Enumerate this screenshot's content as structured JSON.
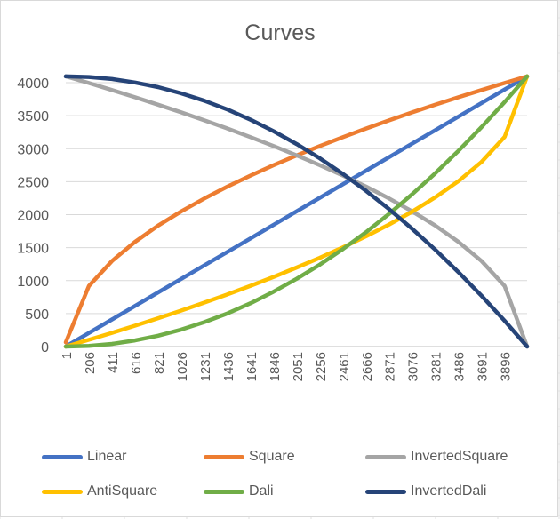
{
  "chart_data": {
    "type": "line",
    "title": "Curves",
    "xlabel": "",
    "ylabel": "",
    "ylim": [
      0,
      4000
    ],
    "y_ticks": [
      0,
      500,
      1000,
      1500,
      2000,
      2500,
      3000,
      3500,
      4000
    ],
    "x_range": [
      1,
      4096
    ],
    "x_tick_labels": [
      "1",
      "206",
      "411",
      "616",
      "821",
      "1026",
      "1231",
      "1436",
      "1641",
      "1846",
      "2051",
      "2256",
      "2461",
      "2666",
      "2871",
      "3076",
      "3281",
      "3486",
      "3691",
      "3896"
    ],
    "grid": "horizontal",
    "legend_position": "bottom",
    "x": [
      1,
      206,
      411,
      616,
      821,
      1026,
      1231,
      1436,
      1641,
      1846,
      2051,
      2256,
      2461,
      2666,
      2871,
      3076,
      3281,
      3486,
      3691,
      3896,
      4096
    ],
    "series": [
      {
        "name": "Linear",
        "color": "#4472c4",
        "values": [
          1,
          206,
          411,
          616,
          821,
          1026,
          1231,
          1436,
          1641,
          1846,
          2051,
          2256,
          2461,
          2666,
          2871,
          3076,
          3281,
          3486,
          3691,
          3896,
          4096
        ]
      },
      {
        "name": "Square",
        "color": "#ed7d31",
        "values": [
          64,
          918,
          1297,
          1588,
          1834,
          2050,
          2245,
          2425,
          2592,
          2750,
          2898,
          3040,
          3175,
          3305,
          3429,
          3550,
          3666,
          3779,
          3888,
          3994,
          4096
        ]
      },
      {
        "name": "InvertedSquare",
        "color": "#a5a5a5",
        "values": [
          4096,
          3994,
          3888,
          3779,
          3666,
          3550,
          3429,
          3305,
          3175,
          3040,
          2898,
          2750,
          2592,
          2425,
          2245,
          2050,
          1834,
          1588,
          1297,
          918,
          0
        ]
      },
      {
        "name": "AntiSquare",
        "color": "#ffc000",
        "values": [
          0,
          102,
          208,
          317,
          430,
          546,
          667,
          791,
          921,
          1056,
          1198,
          1346,
          1504,
          1671,
          1851,
          2046,
          2262,
          2508,
          2799,
          3178,
          4096
        ]
      },
      {
        "name": "Dali",
        "color": "#70ad47",
        "values": [
          0,
          10,
          41,
          93,
          164,
          257,
          370,
          503,
          657,
          832,
          1027,
          1242,
          1479,
          1735,
          2012,
          2310,
          2628,
          2967,
          3326,
          3706,
          4096
        ]
      },
      {
        "name": "InvertedDali",
        "color": "#264478",
        "values": [
          4096,
          4086,
          4055,
          4003,
          3932,
          3839,
          3726,
          3593,
          3439,
          3264,
          3069,
          2854,
          2617,
          2361,
          2084,
          1786,
          1468,
          1129,
          770,
          390,
          0
        ]
      }
    ]
  }
}
